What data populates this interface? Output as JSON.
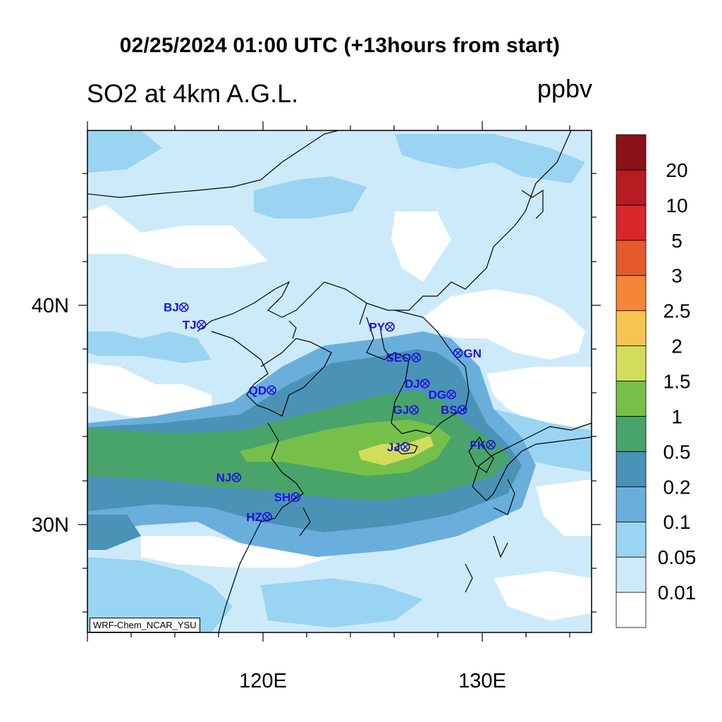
{
  "title": "02/25/2024 01:00 UTC (+13hours from start)",
  "subtitle": "SO2 at 4km A.G.L.",
  "units": "ppbv",
  "credit": "WRF-Chem_NCAR_YSU",
  "map": {
    "lon_range": [
      112,
      135
    ],
    "lat_range": [
      25,
      48
    ],
    "lon_ticks": [
      {
        "value": 120,
        "label": "120E"
      },
      {
        "value": 130,
        "label": "130E"
      }
    ],
    "lat_ticks": [
      {
        "value": 30,
        "label": "30N"
      },
      {
        "value": 40,
        "label": "40N"
      }
    ]
  },
  "colorbar": {
    "colors": [
      "#ffffff",
      "#cdeafa",
      "#99d4f2",
      "#6aaedc",
      "#4a93b6",
      "#48a46a",
      "#76c04a",
      "#d1dd5b",
      "#f8c450",
      "#f48537",
      "#e55a2c",
      "#d9272c",
      "#b71c22",
      "#8b1219"
    ],
    "labels": [
      "0.01",
      "0.05",
      "0.1",
      "0.2",
      "0.5",
      "1",
      "1.5",
      "2",
      "2.5",
      "3",
      "5",
      "10",
      "20"
    ]
  },
  "stations": [
    {
      "code": "BJ",
      "lon": 116.4,
      "lat": 39.9,
      "label_side": "left"
    },
    {
      "code": "TJ",
      "lon": 117.2,
      "lat": 39.1,
      "label_side": "left"
    },
    {
      "code": "PY",
      "lon": 125.8,
      "lat": 39.0,
      "label_side": "left"
    },
    {
      "code": "GN",
      "lon": 128.9,
      "lat": 37.8,
      "label_side": "right"
    },
    {
      "code": "SEO",
      "lon": 127.0,
      "lat": 37.6,
      "label_side": "left"
    },
    {
      "code": "QD",
      "lon": 120.4,
      "lat": 36.1,
      "label_side": "left"
    },
    {
      "code": "DJ",
      "lon": 127.4,
      "lat": 36.4,
      "label_side": "left"
    },
    {
      "code": "DG",
      "lon": 128.6,
      "lat": 35.9,
      "label_side": "left"
    },
    {
      "code": "GJ",
      "lon": 126.9,
      "lat": 35.2,
      "label_side": "left"
    },
    {
      "code": "BS",
      "lon": 129.1,
      "lat": 35.2,
      "label_side": "left"
    },
    {
      "code": "JJ",
      "lon": 126.5,
      "lat": 33.5,
      "label_side": "left"
    },
    {
      "code": "FK",
      "lon": 130.4,
      "lat": 33.6,
      "label_side": "left"
    },
    {
      "code": "NJ",
      "lon": 118.8,
      "lat": 32.1,
      "label_side": "left"
    },
    {
      "code": "SH",
      "lon": 121.5,
      "lat": 31.2,
      "label_side": "left"
    },
    {
      "code": "HZ",
      "lon": 120.2,
      "lat": 30.3,
      "label_side": "left"
    }
  ]
}
